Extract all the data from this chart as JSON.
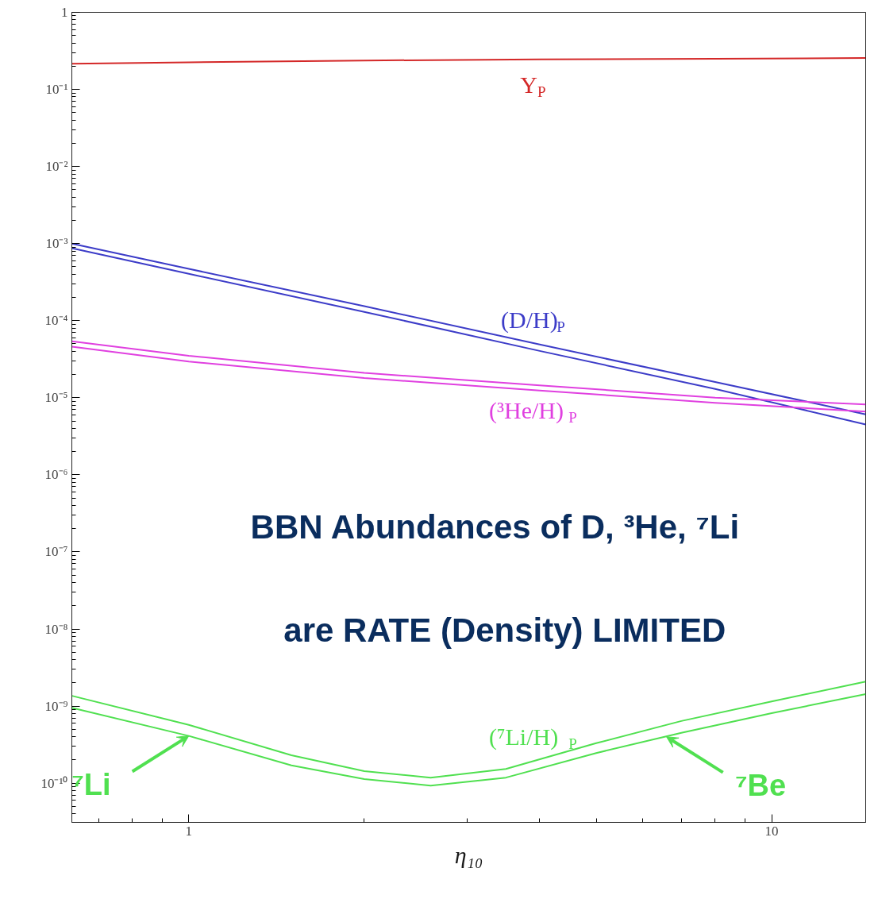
{
  "chart_data": {
    "type": "line",
    "log": "xy",
    "xlabel": "η₁₀",
    "xlim": [
      0.63,
      14.5
    ],
    "ylim": [
      3.1e-11,
      1
    ],
    "xticks": [
      1,
      10
    ],
    "yticks": [
      1,
      {
        "value": 0.1,
        "label": "10⁻¹"
      },
      {
        "value": 0.01,
        "label": "10⁻²"
      },
      {
        "value": 0.001,
        "label": "10⁻³"
      },
      {
        "value": 0.0001,
        "label": "10⁻⁴"
      },
      {
        "value": 1e-05,
        "label": "10⁻⁵"
      },
      {
        "value": 1e-06,
        "label": "10⁻⁶"
      },
      {
        "value": 1e-07,
        "label": "10⁻⁷"
      },
      {
        "value": 1e-08,
        "label": "10⁻⁸"
      },
      {
        "value": 1e-09,
        "label": "10⁻⁹"
      },
      {
        "value": 1e-10,
        "label": "10⁻¹⁰"
      }
    ],
    "series": [
      {
        "name": "Y$_{P}$",
        "color": "#d42828",
        "x": [
          0.63,
          1,
          2,
          4,
          8,
          14.5
        ],
        "values": [
          0.215,
          0.225,
          0.237,
          0.245,
          0.25,
          0.255
        ]
      },
      {
        "name": "(D/H)$_{P}$",
        "color": "#3c3cc8",
        "x": [
          0.63,
          1,
          2,
          4,
          8,
          14.5
        ],
        "values": [
          0.001,
          0.00047,
          0.000154,
          4.9e-05,
          1.6e-05,
          6.1e-06
        ]
      },
      {
        "color": "#3c3cc8",
        "x": [
          0.63,
          1,
          2,
          4,
          8,
          14.5
        ],
        "values": [
          0.00087,
          0.000405,
          0.00013,
          4.05e-05,
          1.3e-05,
          4.5e-06
        ]
      },
      {
        "name": "(³He/H)$_{P}$",
        "color": "#e040e0",
        "x": [
          0.63,
          1,
          2,
          4,
          8,
          14.5
        ],
        "values": [
          5.4e-05,
          3.5e-05,
          2.1e-05,
          1.45e-05,
          1e-05,
          8.2e-06
        ]
      },
      {
        "color": "#e040e0",
        "x": [
          0.63,
          1,
          2,
          4,
          8,
          14.5
        ],
        "values": [
          4.6e-05,
          2.95e-05,
          1.8e-05,
          1.24e-05,
          8.6e-06,
          6.6e-06
        ]
      },
      {
        "color": "#50e050",
        "x": [
          0.63,
          1,
          1.5,
          2,
          2.6,
          3.5,
          5,
          7,
          10,
          14.5
        ],
        "name": "(⁷Li/H)$_{P}$",
        "values": [
          1.36e-09,
          5.7e-10,
          2.3e-10,
          1.43e-10,
          1.18e-10,
          1.53e-10,
          3.3e-10,
          6.4e-10,
          1.15e-09,
          2.08e-09
        ]
      },
      {
        "color": "#50e050",
        "x": [
          0.63,
          1,
          1.5,
          2,
          2.6,
          3.5,
          5,
          7,
          10,
          14.5
        ],
        "values": [
          9.5e-10,
          4.1e-10,
          1.7e-10,
          1.13e-10,
          9.3e-11,
          1.18e-10,
          2.46e-10,
          4.5e-10,
          8.1e-10,
          1.43e-09
        ]
      }
    ],
    "annotations": [
      {
        "text": "⁷Li",
        "x": 1.0,
        "y": 4.1e-10
      },
      {
        "text": "⁷Be",
        "x": 6.6,
        "y": 4e-10
      },
      "BBN  Abundances  of  D,  ³He,  ⁷Li",
      "are  RATE  (Density)  LIMITED"
    ]
  }
}
